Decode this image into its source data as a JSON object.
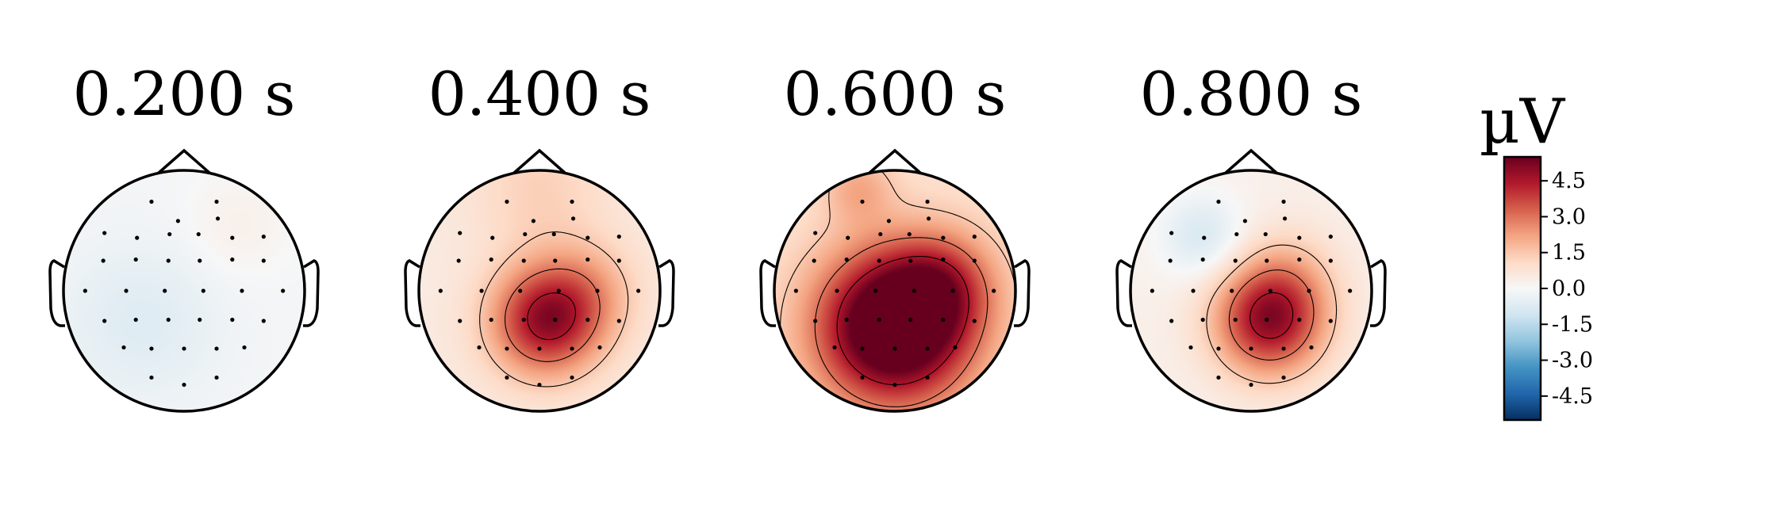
{
  "chart_data": {
    "type": "heatmap",
    "colormap": "RdBu_r",
    "vmin": -5.5,
    "vmax": 5.5,
    "colorbar": {
      "label": "µV",
      "ticks": [
        4.5,
        3.0,
        1.5,
        0.0,
        -1.5,
        -3.0,
        -4.5
      ],
      "tick_labels": [
        "4.5",
        "3.0",
        "1.5",
        "0.0",
        "-1.5",
        "-3.0",
        "-4.5"
      ]
    },
    "panels": [
      {
        "title": "0.200 s",
        "sources": [
          {
            "x": -0.35,
            "y": -0.25,
            "amp": -0.6,
            "sigma": 0.45
          },
          {
            "x": 0.45,
            "y": 0.55,
            "amp": 0.4,
            "sigma": 0.3
          }
        ],
        "offset": -0.1
      },
      {
        "title": "0.400 s",
        "sources": [
          {
            "x": 0.05,
            "y": -0.25,
            "amp": 4.2,
            "sigma": 0.32
          },
          {
            "x": 0.4,
            "y": 0.0,
            "amp": 1.2,
            "sigma": 0.3
          },
          {
            "x": 0.0,
            "y": 0.85,
            "amp": 0.8,
            "sigma": 0.4
          }
        ],
        "offset": 0.5
      },
      {
        "title": "0.600 s",
        "sources": [
          {
            "x": 0.0,
            "y": -0.3,
            "amp": 6.5,
            "sigma": 0.45
          },
          {
            "x": 0.4,
            "y": 0.05,
            "amp": 2.0,
            "sigma": 0.3
          },
          {
            "x": -0.3,
            "y": 0.85,
            "amp": 1.2,
            "sigma": 0.2
          }
        ],
        "offset": 0.8
      },
      {
        "title": "0.800 s",
        "sources": [
          {
            "x": 0.15,
            "y": -0.25,
            "amp": 4.4,
            "sigma": 0.32
          },
          {
            "x": 0.3,
            "y": 0.1,
            "amp": 1.0,
            "sigma": 0.3
          },
          {
            "x": -0.4,
            "y": 0.45,
            "amp": -1.2,
            "sigma": 0.25
          }
        ],
        "offset": 0.3
      }
    ],
    "sensors": [
      [
        -0.27,
        0.74
      ],
      [
        0.27,
        0.74
      ],
      [
        -0.05,
        0.58
      ],
      [
        0.28,
        0.6
      ],
      [
        -0.66,
        0.48
      ],
      [
        -0.39,
        0.44
      ],
      [
        -0.12,
        0.47
      ],
      [
        0.12,
        0.47
      ],
      [
        0.4,
        0.44
      ],
      [
        0.66,
        0.45
      ],
      [
        -0.67,
        0.25
      ],
      [
        -0.4,
        0.26
      ],
      [
        -0.13,
        0.25
      ],
      [
        0.13,
        0.25
      ],
      [
        0.4,
        0.26
      ],
      [
        0.66,
        0.25
      ],
      [
        -0.82,
        0.0
      ],
      [
        -0.48,
        0.0
      ],
      [
        -0.16,
        0.0
      ],
      [
        0.16,
        0.0
      ],
      [
        0.48,
        0.0
      ],
      [
        0.82,
        0.0
      ],
      [
        -0.66,
        -0.25
      ],
      [
        -0.4,
        -0.24
      ],
      [
        -0.13,
        -0.24
      ],
      [
        0.13,
        -0.24
      ],
      [
        0.4,
        -0.24
      ],
      [
        0.66,
        -0.25
      ],
      [
        -0.5,
        -0.47
      ],
      [
        -0.27,
        -0.48
      ],
      [
        0.0,
        -0.48
      ],
      [
        0.27,
        -0.48
      ],
      [
        0.5,
        -0.47
      ],
      [
        -0.27,
        -0.72
      ],
      [
        0.0,
        -0.78
      ],
      [
        0.27,
        -0.72
      ]
    ]
  }
}
